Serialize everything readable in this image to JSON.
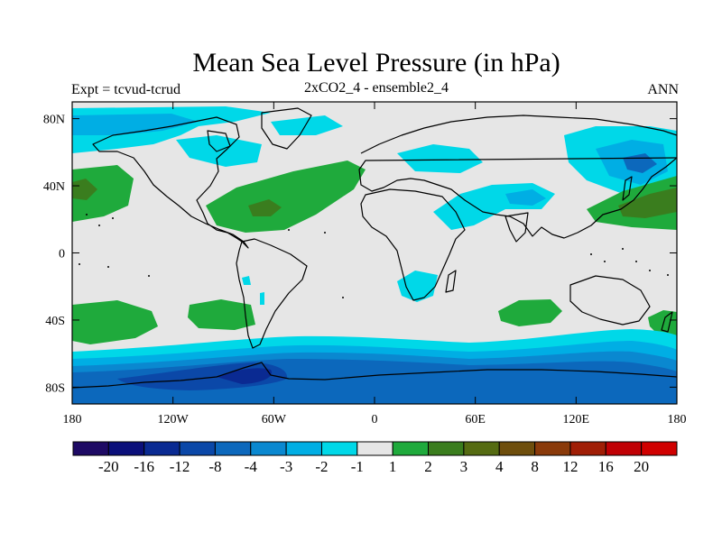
{
  "header": {
    "title": "Mean Sea Level Pressure (in hPa)",
    "left_subtitle": "Expt = tcvud-tcrud",
    "center_subtitle": "2xCO2_4 - ensemble2_4",
    "right_subtitle": "ANN"
  },
  "map": {
    "projection": "cylindrical-equidistant",
    "lon_range": [
      -180,
      180
    ],
    "lat_range": [
      -90,
      90
    ],
    "lat_ticks": [
      {
        "value": 80,
        "label": "80N"
      },
      {
        "value": 40,
        "label": "40N"
      },
      {
        "value": 0,
        "label": "0"
      },
      {
        "value": -40,
        "label": "40S"
      },
      {
        "value": -80,
        "label": "80S"
      }
    ],
    "lon_ticks": [
      {
        "value": -180,
        "label": "180"
      },
      {
        "value": -120,
        "label": "120W"
      },
      {
        "value": -60,
        "label": "60W"
      },
      {
        "value": 0,
        "label": "0"
      },
      {
        "value": 60,
        "label": "60E"
      },
      {
        "value": 120,
        "label": "120E"
      },
      {
        "value": 180,
        "label": "180"
      }
    ],
    "background_color": "#e6e6e6"
  },
  "colorbar": {
    "colors": [
      "#1e0a64",
      "#0b0f7a",
      "#0a2a92",
      "#0b48a8",
      "#0c68bc",
      "#0a88d0",
      "#00aee4",
      "#00d8e8",
      "#e6e6e6",
      "#1faa3c",
      "#3a7d1e",
      "#556b12",
      "#6e4e0c",
      "#8a3a0a",
      "#a01e06",
      "#c00004",
      "#d00000"
    ],
    "labels": [
      "-20",
      "-16",
      "-12",
      "-8",
      "-4",
      "-3",
      "-2",
      "-1",
      "1",
      "2",
      "3",
      "4",
      "8",
      "12",
      "16",
      "20"
    ]
  }
}
